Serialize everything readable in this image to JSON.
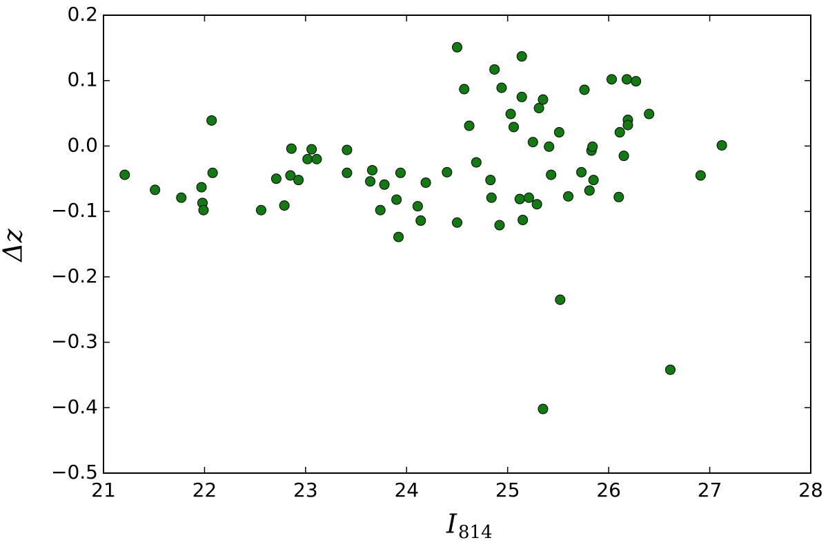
{
  "chart_data": {
    "type": "scatter",
    "x_label": {
      "text": "I",
      "subscript": "814"
    },
    "y_label": "Δz",
    "xlim": [
      21,
      28
    ],
    "ylim": [
      -0.5,
      0.2
    ],
    "xticks": [
      21,
      22,
      23,
      24,
      25,
      26,
      27,
      28
    ],
    "yticks": [
      {
        "value": -0.5,
        "label": "−0.5"
      },
      {
        "value": -0.4,
        "label": "−0.4"
      },
      {
        "value": -0.3,
        "label": "−0.3"
      },
      {
        "value": -0.2,
        "label": "−0.2"
      },
      {
        "value": -0.1,
        "label": "−0.1"
      },
      {
        "value": 0,
        "label": "0.0"
      },
      0.1,
      0.2
    ],
    "color": "#117a11",
    "x": [
      21.21,
      21.51,
      21.77,
      21.97,
      21.98,
      21.99,
      22.07,
      22.08,
      22.56,
      22.71,
      22.79,
      22.85,
      22.86,
      22.93,
      23.02,
      23.06,
      23.11,
      23.41,
      23.41,
      23.64,
      23.66,
      23.74,
      23.78,
      23.9,
      23.92,
      23.94,
      24.11,
      24.14,
      24.19,
      24.4,
      24.5,
      24.5,
      24.57,
      24.62,
      24.69,
      24.83,
      24.84,
      24.87,
      24.92,
      24.94,
      25.03,
      25.06,
      25.12,
      25.14,
      25.14,
      25.15,
      25.21,
      25.25,
      25.29,
      25.31,
      25.35,
      25.35,
      25.41,
      25.43,
      25.51,
      25.52,
      25.6,
      25.73,
      25.76,
      25.81,
      25.83,
      25.84,
      25.85,
      26.03,
      26.1,
      26.11,
      26.15,
      26.18,
      26.19,
      26.19,
      26.27,
      26.4,
      26.61,
      26.91,
      27.12
    ],
    "values": [
      -0.044,
      -0.067,
      -0.079,
      -0.063,
      -0.087,
      -0.098,
      0.039,
      -0.041,
      -0.098,
      -0.05,
      -0.091,
      -0.045,
      -0.004,
      -0.052,
      -0.02,
      -0.005,
      -0.02,
      -0.006,
      -0.041,
      -0.054,
      -0.037,
      -0.098,
      -0.059,
      -0.082,
      -0.139,
      -0.041,
      -0.092,
      -0.114,
      -0.056,
      -0.04,
      0.151,
      -0.117,
      0.087,
      0.031,
      -0.025,
      -0.052,
      -0.079,
      0.117,
      -0.121,
      0.089,
      0.049,
      0.029,
      -0.081,
      0.137,
      0.075,
      -0.113,
      -0.079,
      0.006,
      -0.089,
      0.058,
      0.071,
      -0.402,
      -0.001,
      -0.044,
      0.021,
      -0.235,
      -0.077,
      -0.04,
      0.086,
      -0.068,
      -0.007,
      -0.001,
      -0.052,
      0.102,
      -0.078,
      0.021,
      -0.015,
      0.102,
      0.04,
      0.032,
      0.099,
      0.049,
      -0.342,
      -0.045,
      0.001
    ]
  }
}
